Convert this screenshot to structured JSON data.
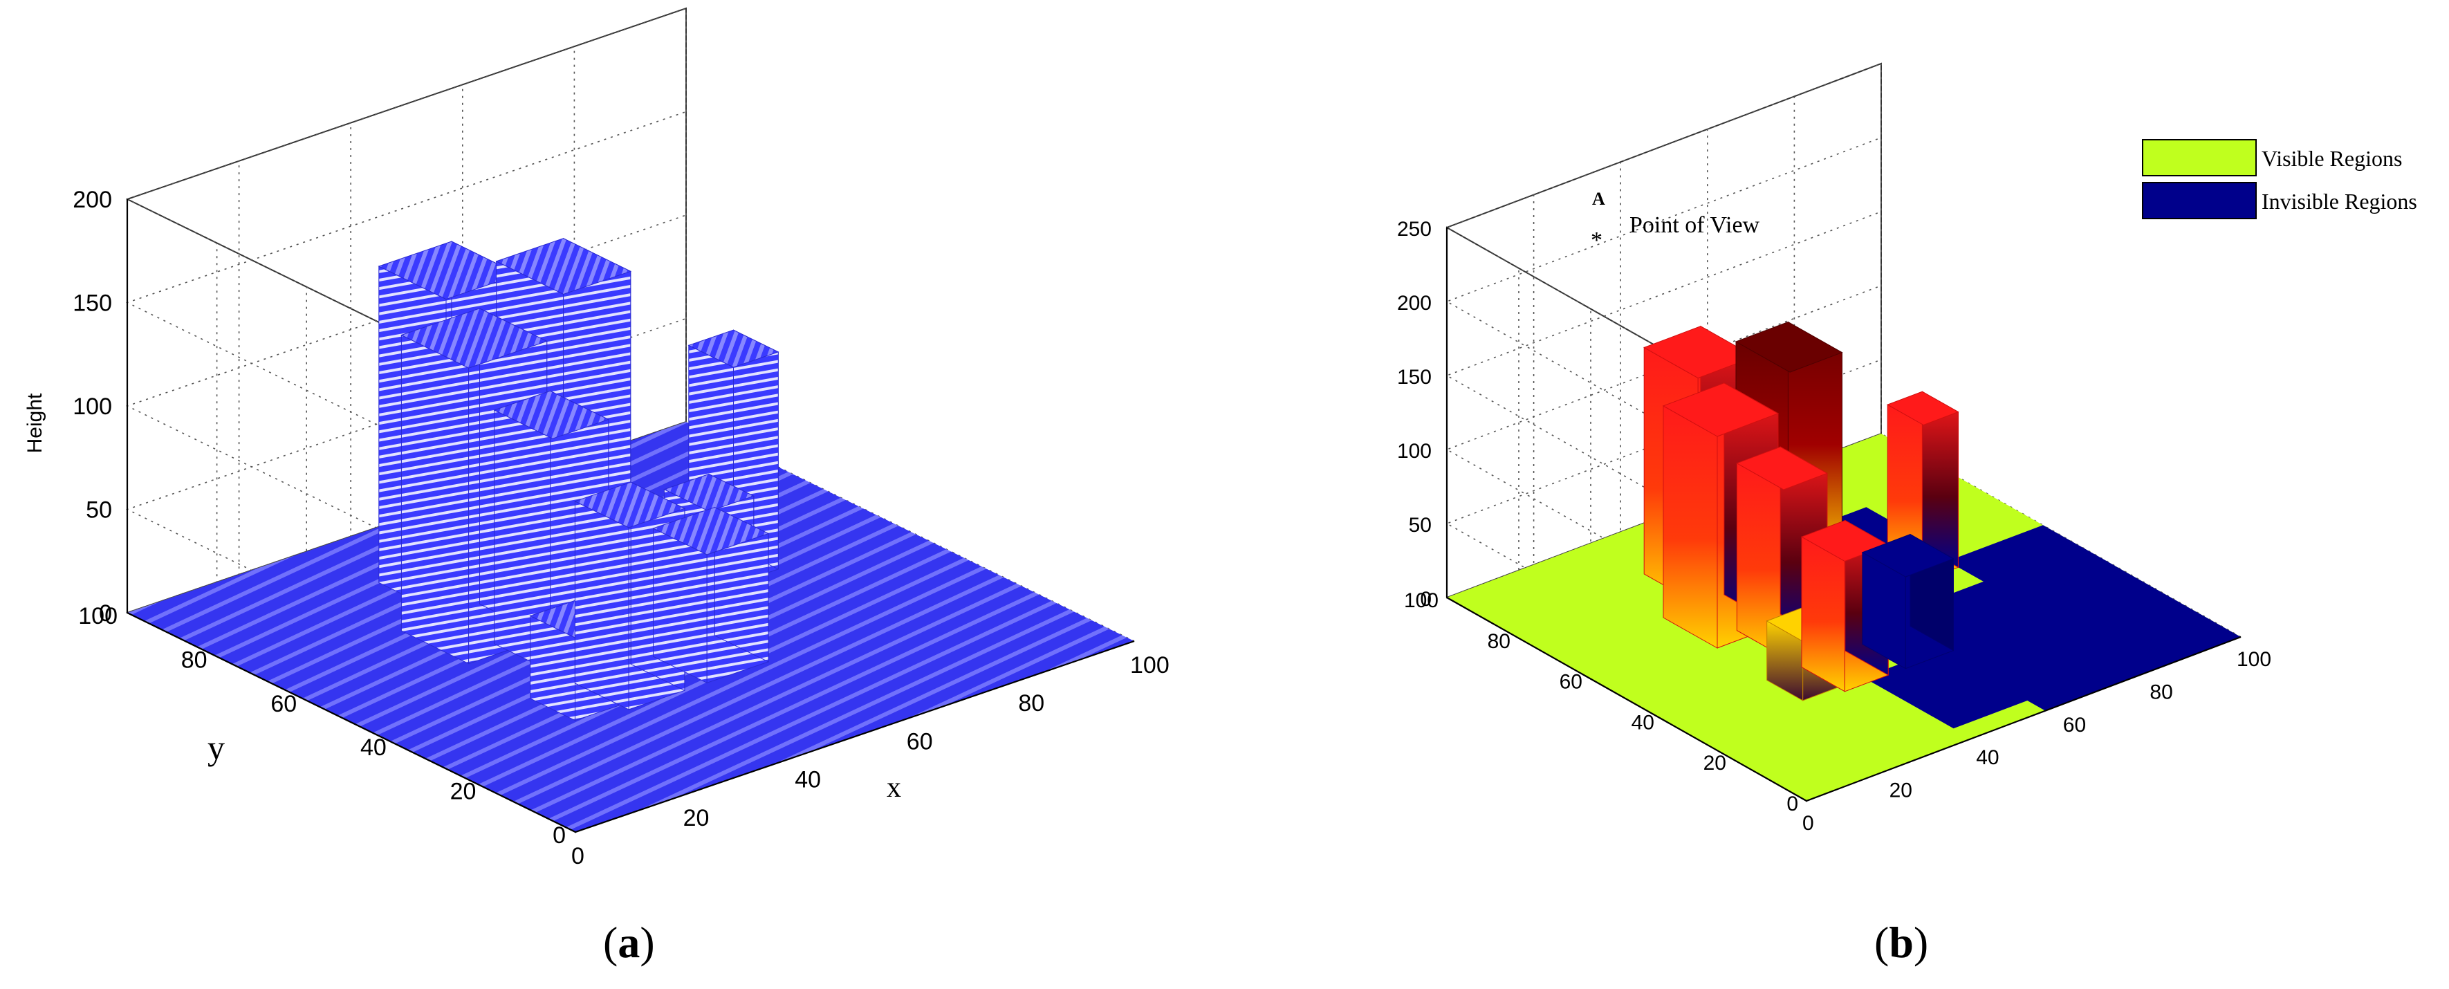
{
  "chart_data": [
    {
      "panel": "(a)",
      "panel_letter": "a",
      "type": "3d-bar",
      "xlabel": "x",
      "ylabel": "y",
      "zlabel": "Height",
      "xlim": [
        0,
        100
      ],
      "ylim": [
        0,
        100
      ],
      "zlim": [
        0,
        200
      ],
      "x_ticks": [
        "0",
        "20",
        "40",
        "60",
        "80",
        "100"
      ],
      "y_ticks": [
        "0",
        "20",
        "40",
        "60",
        "80",
        "100"
      ],
      "z_ticks": [
        "0",
        "50",
        "100",
        "150",
        "200"
      ],
      "grid": true,
      "colors": {
        "surface": "#3a3aff",
        "stripe": "#ffffff"
      },
      "buildings": [
        {
          "x": [
            25,
            39
          ],
          "y": [
            55,
            70
          ],
          "height": 143
        },
        {
          "x": [
            33,
            46
          ],
          "y": [
            70,
            85
          ],
          "height": 153
        },
        {
          "x": [
            50,
            62
          ],
          "y": [
            65,
            80
          ],
          "height": 145
        },
        {
          "x": [
            32,
            42
          ],
          "y": [
            45,
            58
          ],
          "height": 113
        },
        {
          "x": [
            24,
            32
          ],
          "y": [
            30,
            40
          ],
          "height": 40
        },
        {
          "x": [
            32,
            42
          ],
          "y": [
            28,
            40
          ],
          "height": 88
        },
        {
          "x": [
            46,
            57
          ],
          "y": [
            28,
            40
          ],
          "height": 62
        },
        {
          "x": [
            60,
            68
          ],
          "y": [
            45,
            55
          ],
          "height": 52
        },
        {
          "x": [
            70,
            78
          ],
          "y": [
            52,
            62
          ],
          "height": 105
        }
      ]
    },
    {
      "panel": "(b)",
      "panel_letter": "b",
      "type": "3d-bar",
      "xlim": [
        0,
        100
      ],
      "ylim": [
        0,
        100
      ],
      "zlim": [
        0,
        250
      ],
      "x_ticks": [
        "0",
        "20",
        "40",
        "60",
        "80",
        "100"
      ],
      "y_ticks": [
        "0",
        "20",
        "40",
        "60",
        "80",
        "100"
      ],
      "z_ticks": [
        "0",
        "50",
        "100",
        "150",
        "200",
        "250"
      ],
      "grid": true,
      "legend": [
        {
          "label": "Visible Regions",
          "color": "#c0ff1e"
        },
        {
          "label": "Invisible Regions",
          "color": "#00008b"
        }
      ],
      "legend_position": "top-right",
      "annotation": {
        "marker": "A",
        "label": "Point of View"
      },
      "colors": {
        "visible": "#c0ff1e",
        "invisible": "#00008b",
        "lit": "#ff1a1a",
        "dark": "#6a0000",
        "glow": "#ffd200"
      },
      "buildings": [
        {
          "x": [
            25,
            39
          ],
          "y": [
            55,
            70
          ],
          "height": 143,
          "top": "lit"
        },
        {
          "x": [
            33,
            46
          ],
          "y": [
            70,
            85
          ],
          "height": 153,
          "top": "lit"
        },
        {
          "x": [
            50,
            62
          ],
          "y": [
            65,
            80
          ],
          "height": 145,
          "top": "dark"
        },
        {
          "x": [
            32,
            42
          ],
          "y": [
            45,
            58
          ],
          "height": 113,
          "top": "lit"
        },
        {
          "x": [
            24,
            32
          ],
          "y": [
            30,
            40
          ],
          "height": 40,
          "top": "glow"
        },
        {
          "x": [
            32,
            42
          ],
          "y": [
            28,
            40
          ],
          "height": 88,
          "top": "lit"
        },
        {
          "x": [
            46,
            57
          ],
          "y": [
            28,
            40
          ],
          "height": 62,
          "top": "invisible"
        },
        {
          "x": [
            70,
            78
          ],
          "y": [
            52,
            62
          ],
          "height": 105,
          "top": "lit"
        }
      ],
      "invisible_patches": [
        {
          "x": [
            55,
            100
          ],
          "y": [
            0,
            45
          ]
        },
        {
          "x": [
            38,
            62
          ],
          "y": [
            5,
            30
          ]
        },
        {
          "x": [
            62,
            80
          ],
          "y": [
            60,
            80
          ]
        },
        {
          "x": [
            78,
            100
          ],
          "y": [
            35,
            55
          ]
        }
      ]
    }
  ]
}
